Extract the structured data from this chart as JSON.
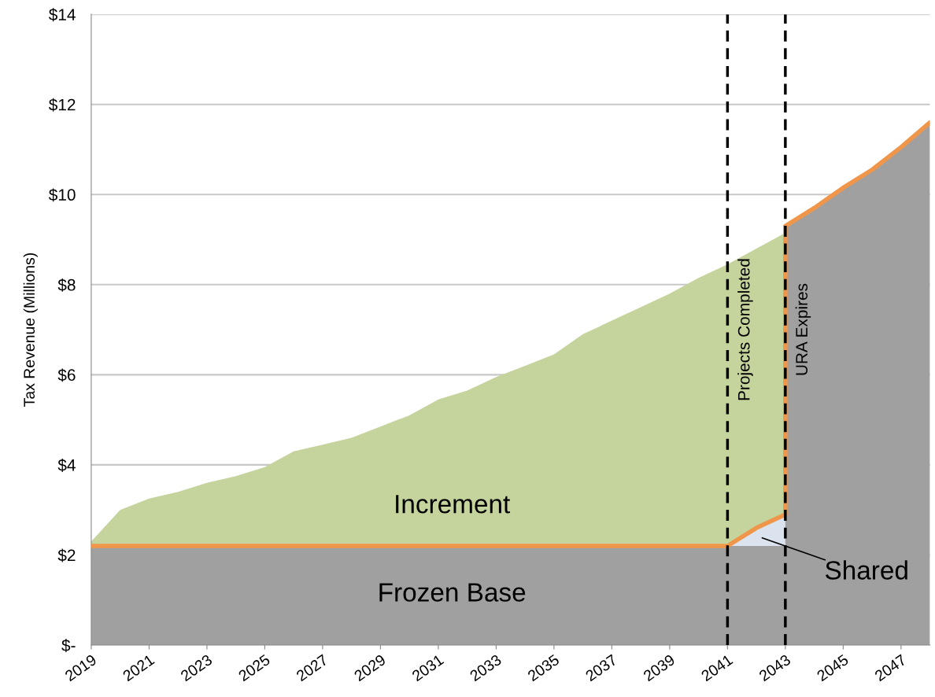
{
  "chart_data": {
    "type": "area",
    "ylabel": "Tax Revenue (Millions)",
    "xlim": [
      2019,
      2048
    ],
    "xticks": [
      2019,
      2021,
      2023,
      2025,
      2027,
      2029,
      2031,
      2033,
      2035,
      2037,
      2039,
      2041,
      2043,
      2045,
      2047
    ],
    "ylim": [
      0,
      14
    ],
    "yticks": [
      {
        "value": 0,
        "label": "$-"
      },
      {
        "value": 2,
        "label": "$2"
      },
      {
        "value": 4,
        "label": "$4"
      },
      {
        "value": 6,
        "label": "$6"
      },
      {
        "value": 8,
        "label": "$8"
      },
      {
        "value": 10,
        "label": "$10"
      },
      {
        "value": 12,
        "label": "$12"
      },
      {
        "value": 14,
        "label": "$14"
      }
    ],
    "grid": "y",
    "legend": false,
    "series": [
      {
        "name": "Increment",
        "color": "#c5d39c",
        "x": [
          2019,
          2020,
          2021,
          2022,
          2023,
          2024,
          2025,
          2026,
          2027,
          2028,
          2029,
          2030,
          2031,
          2032,
          2033,
          2034,
          2035,
          2036,
          2037,
          2038,
          2039,
          2040,
          2041,
          2042,
          2043
        ],
        "values": [
          2.3,
          3.0,
          3.25,
          3.4,
          3.6,
          3.75,
          3.95,
          4.3,
          4.45,
          4.6,
          4.85,
          5.1,
          5.45,
          5.65,
          5.95,
          6.2,
          6.45,
          6.9,
          7.2,
          7.5,
          7.8,
          8.15,
          8.45,
          8.8,
          9.15
        ]
      },
      {
        "name": "Shared",
        "color": "#dae3ee",
        "x": [
          2041,
          2042,
          2043
        ],
        "values": [
          2.2,
          2.6,
          2.9
        ]
      },
      {
        "name": "Frozen Base",
        "color": "#a0a0a0",
        "x": [
          2019,
          2041,
          2043,
          2043,
          2044,
          2045,
          2046,
          2047,
          2048
        ],
        "values": [
          2.2,
          2.2,
          2.2,
          9.3,
          9.7,
          10.15,
          10.55,
          11.05,
          11.6
        ]
      },
      {
        "type": "line",
        "color": "#f0964a",
        "x": [
          2019,
          2041,
          2042,
          2043,
          2043,
          2044,
          2045,
          2046,
          2047,
          2048
        ],
        "values": [
          2.2,
          2.2,
          2.6,
          2.9,
          9.3,
          9.7,
          10.15,
          10.55,
          11.05,
          11.6
        ]
      }
    ],
    "ref_lines": [
      {
        "axis": "x",
        "value": 2041,
        "label": "Projects Completed",
        "color": "#000000",
        "line_style": "dashed"
      },
      {
        "axis": "x",
        "value": 2043,
        "label": "URA Expires",
        "color": "#000000",
        "line_style": "dashed"
      }
    ]
  }
}
